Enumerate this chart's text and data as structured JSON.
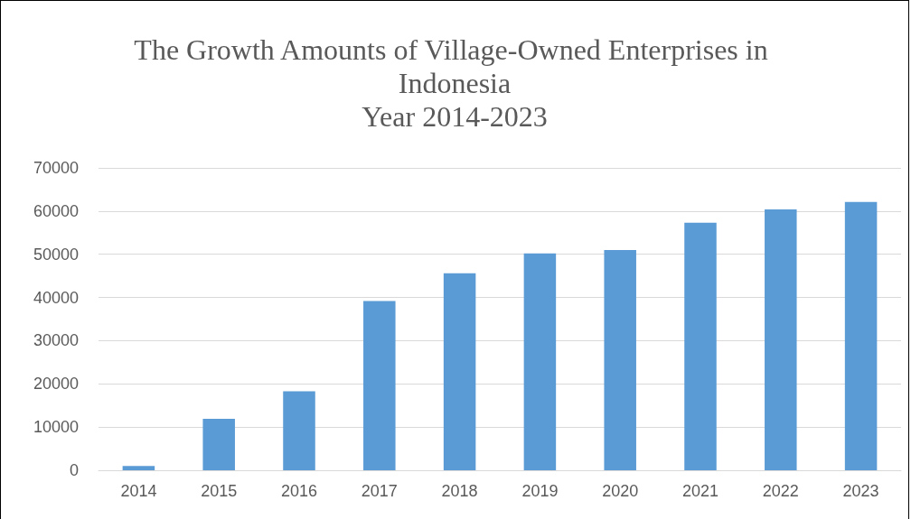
{
  "chart_data": {
    "type": "bar",
    "title": "The Growth Amounts of Village-Owned Enterprises in Indonesia\nYear 2014-2023",
    "categories": [
      "2014",
      "2015",
      "2016",
      "2017",
      "2018",
      "2019",
      "2020",
      "2021",
      "2022",
      "2023"
    ],
    "values": [
      1000,
      11900,
      18300,
      39200,
      45600,
      50200,
      51000,
      57300,
      60400,
      62100
    ],
    "color": "#5b9bd5",
    "ylim": [
      0,
      70000
    ],
    "yticks": [
      0,
      10000,
      20000,
      30000,
      40000,
      50000,
      60000,
      70000
    ],
    "grid": "y"
  }
}
